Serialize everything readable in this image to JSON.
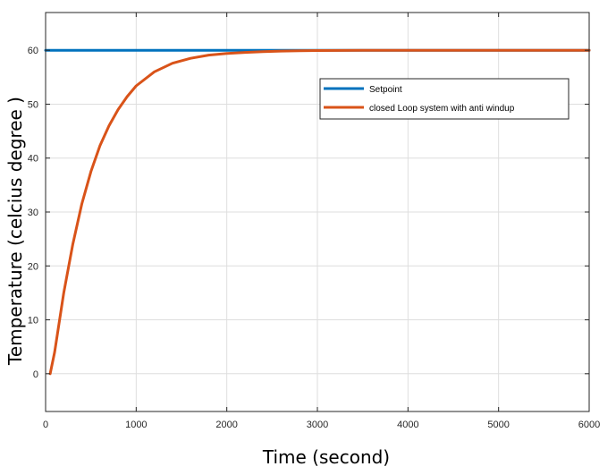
{
  "chart_data": {
    "type": "line",
    "title": "",
    "xlabel": "Time (second)",
    "ylabel": "Temperature (celcius degree )",
    "xlim": [
      0,
      6000
    ],
    "ylim": [
      -7,
      67
    ],
    "x_ticks": [
      0,
      1000,
      2000,
      3000,
      4000,
      5000,
      6000
    ],
    "x_tick_labels": [
      "0",
      "1000",
      "2000",
      "3000",
      "4000",
      "5000",
      "6000"
    ],
    "y_ticks": [
      0,
      10,
      20,
      30,
      40,
      50,
      60
    ],
    "y_tick_labels": [
      "0",
      "10",
      "20",
      "30",
      "40",
      "50",
      "60"
    ],
    "grid": true,
    "legend_position": "top-right",
    "series": [
      {
        "name": "Setpoint",
        "color": "#0072BD",
        "x": [
          0,
          6000
        ],
        "y": [
          60,
          60
        ]
      },
      {
        "name": "closed Loop system with  anti windup",
        "color": "#D95319",
        "x": [
          50,
          100,
          200,
          300,
          400,
          500,
          600,
          700,
          800,
          900,
          1000,
          1200,
          1400,
          1600,
          1800,
          2000,
          2200,
          2400,
          2600,
          2800,
          3000,
          3500,
          4000,
          5000,
          6000
        ],
        "y": [
          0,
          4,
          15,
          24,
          31.5,
          37.5,
          42.3,
          46,
          49,
          51.4,
          53.4,
          56,
          57.6,
          58.5,
          59.1,
          59.4,
          59.6,
          59.75,
          59.85,
          59.9,
          59.95,
          60,
          60,
          60,
          60
        ]
      }
    ]
  }
}
